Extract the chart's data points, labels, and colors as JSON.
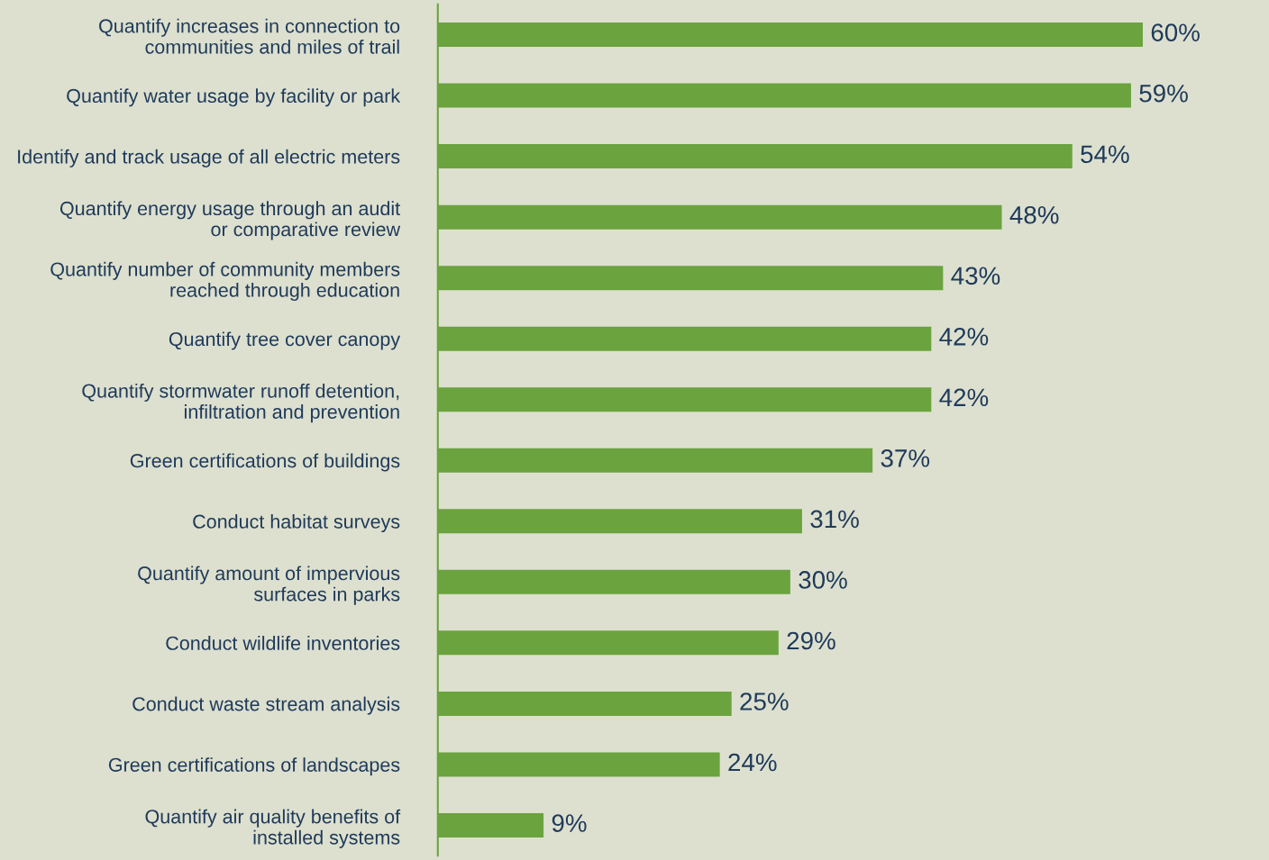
{
  "chart_data": {
    "type": "bar",
    "orientation": "horizontal",
    "categories": [
      "Quantify increases in connection to\ncommunities and miles of trail",
      "Quantify water usage by facility or park",
      "Identify and track usage of all electric meters",
      "Quantify energy usage through an audit\nor comparative review",
      "Quantify number of community members\nreached through education",
      "Quantify tree cover canopy",
      "Quantify stormwater runoff detention,\ninfiltration and prevention",
      "Green certifications of buildings",
      "Conduct habitat surveys",
      "Quantify amount of impervious\nsurfaces in parks",
      "Conduct wildlife inventories",
      "Conduct waste stream analysis",
      "Green certifications of landscapes",
      "Quantify air quality benefits of\ninstalled systems"
    ],
    "values": [
      60,
      59,
      54,
      48,
      43,
      42,
      42,
      37,
      31,
      30,
      29,
      25,
      24,
      9
    ],
    "value_labels": [
      "60%",
      "59%",
      "54%",
      "48%",
      "43%",
      "42%",
      "42%",
      "37%",
      "31%",
      "30%",
      "29%",
      "25%",
      "24%",
      "9%"
    ],
    "color": "#6ba33f"
  }
}
